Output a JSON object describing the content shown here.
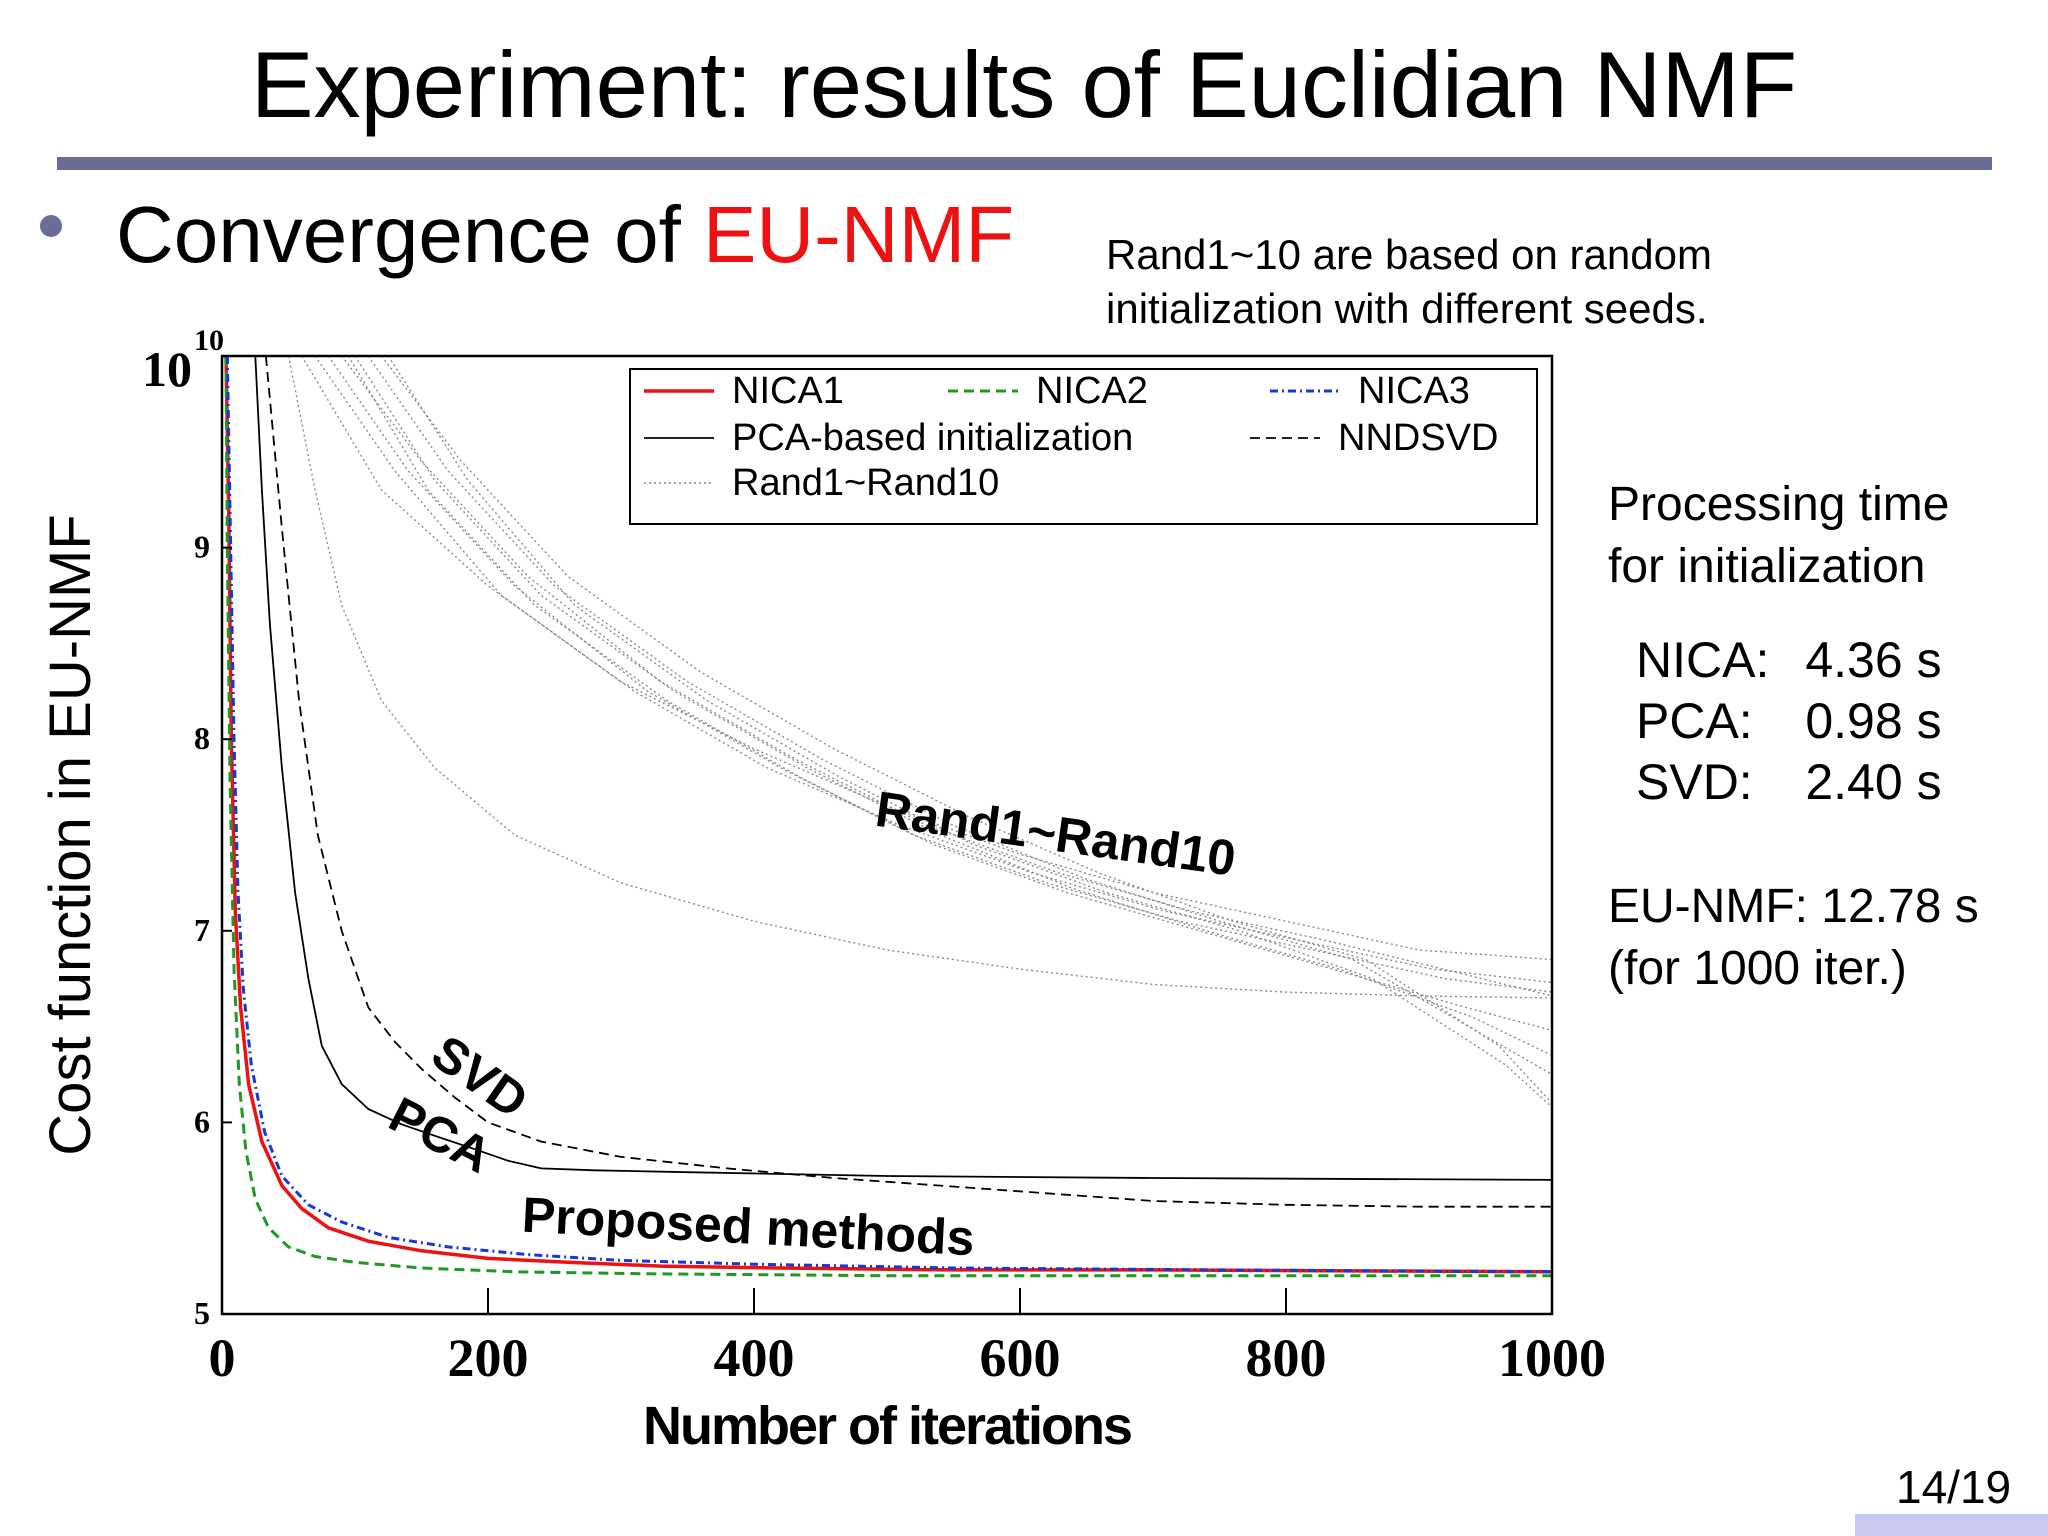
{
  "slide": {
    "title": "Experiment: results of Euclidian NMF",
    "bullet_prefix": "Convergence of ",
    "bullet_highlight": "EU-NMF",
    "note_line1": "Rand1~10 are based on random",
    "note_line2": "initialization with different seeds.",
    "processing_title_line1": "Processing time",
    "processing_title_line2": "for initialization",
    "times": [
      {
        "label": "NICA:",
        "value": "4.36 s"
      },
      {
        "label": "PCA:",
        "value": "0.98 s"
      },
      {
        "label": "SVD:",
        "value": "2.40 s"
      }
    ],
    "eunmf_line1": "EU-NMF: 12.78 s",
    "eunmf_line2": "(for 1000 iter.)",
    "page_number": "14/19",
    "accent_color": "#6b6d98",
    "highlight_color": "#ee1111"
  },
  "chart_data": {
    "type": "line",
    "xlabel": "Number of iterations",
    "ylabel": "Cost function in EU-NMF",
    "xlim": [
      0,
      1000
    ],
    "ylim": [
      5,
      10
    ],
    "x_ticks": [
      0,
      200,
      400,
      600,
      800,
      1000
    ],
    "x_tick_labels": [
      "0",
      "200",
      "400",
      "600",
      "800",
      "1000"
    ],
    "y_ticks": [
      5,
      6,
      7,
      8,
      9
    ],
    "y_tick_labels": [
      "5",
      "6",
      "7",
      "8",
      "9"
    ],
    "y_top_label_base": "10",
    "y_top_label_exp": "10",
    "legend_position": "top-right",
    "annotations": [
      {
        "text": "Rand1~Rand10",
        "x": 490,
        "y": 7.55,
        "rotate": 8
      },
      {
        "text": "SVD",
        "x": 155,
        "y": 6.32,
        "rotate": 35
      },
      {
        "text": "PCA",
        "x": 123,
        "y": 5.98,
        "rotate": 27
      },
      {
        "text": "Proposed methods",
        "x": 225,
        "y": 5.43,
        "rotate": 3
      }
    ],
    "series": [
      {
        "name": "NICA1",
        "color": "#ee1111",
        "dash": "",
        "width": 3.5,
        "points": [
          [
            3,
            10
          ],
          [
            5,
            9.2
          ],
          [
            7,
            8.0
          ],
          [
            10,
            7.1
          ],
          [
            14,
            6.6
          ],
          [
            20,
            6.2
          ],
          [
            30,
            5.9
          ],
          [
            45,
            5.67
          ],
          [
            60,
            5.55
          ],
          [
            80,
            5.45
          ],
          [
            110,
            5.38
          ],
          [
            150,
            5.33
          ],
          [
            200,
            5.29
          ],
          [
            260,
            5.27
          ],
          [
            330,
            5.25
          ],
          [
            420,
            5.24
          ],
          [
            550,
            5.23
          ],
          [
            700,
            5.23
          ],
          [
            1000,
            5.22
          ]
        ]
      },
      {
        "name": "NICA2",
        "color": "#1e9a1e",
        "dash": "10 6",
        "width": 3,
        "points": [
          [
            3,
            10
          ],
          [
            4,
            9.0
          ],
          [
            6,
            7.8
          ],
          [
            9,
            6.8
          ],
          [
            13,
            6.2
          ],
          [
            18,
            5.85
          ],
          [
            25,
            5.6
          ],
          [
            35,
            5.45
          ],
          [
            50,
            5.35
          ],
          [
            70,
            5.3
          ],
          [
            100,
            5.27
          ],
          [
            150,
            5.24
          ],
          [
            220,
            5.22
          ],
          [
            320,
            5.21
          ],
          [
            500,
            5.2
          ],
          [
            1000,
            5.2
          ]
        ]
      },
      {
        "name": "NICA3",
        "color": "#1538d8",
        "dash": "8 4 2 4",
        "width": 3,
        "points": [
          [
            4,
            10
          ],
          [
            6,
            9.2
          ],
          [
            9,
            8.0
          ],
          [
            12,
            7.2
          ],
          [
            16,
            6.7
          ],
          [
            22,
            6.3
          ],
          [
            32,
            5.95
          ],
          [
            45,
            5.72
          ],
          [
            65,
            5.57
          ],
          [
            90,
            5.48
          ],
          [
            125,
            5.4
          ],
          [
            170,
            5.35
          ],
          [
            230,
            5.31
          ],
          [
            300,
            5.28
          ],
          [
            400,
            5.26
          ],
          [
            550,
            5.24
          ],
          [
            750,
            5.23
          ],
          [
            1000,
            5.22
          ]
        ]
      },
      {
        "name": "PCA-based initialization",
        "color": "#000000",
        "dash": "",
        "width": 1.8,
        "points": [
          [
            25,
            10
          ],
          [
            30,
            9.3
          ],
          [
            36,
            8.6
          ],
          [
            45,
            7.85
          ],
          [
            55,
            7.2
          ],
          [
            65,
            6.75
          ],
          [
            75,
            6.4
          ],
          [
            90,
            6.2
          ],
          [
            110,
            6.07
          ],
          [
            135,
            5.99
          ],
          [
            160,
            5.93
          ],
          [
            190,
            5.86
          ],
          [
            215,
            5.8
          ],
          [
            240,
            5.76
          ],
          [
            280,
            5.75
          ],
          [
            350,
            5.74
          ],
          [
            500,
            5.72
          ],
          [
            700,
            5.71
          ],
          [
            1000,
            5.7
          ]
        ]
      },
      {
        "name": "NNDSVD",
        "color": "#000000",
        "dash": "10 6",
        "width": 1.8,
        "points": [
          [
            33,
            10
          ],
          [
            45,
            9.1
          ],
          [
            58,
            8.2
          ],
          [
            72,
            7.5
          ],
          [
            90,
            7.0
          ],
          [
            110,
            6.6
          ],
          [
            130,
            6.42
          ],
          [
            150,
            6.28
          ],
          [
            175,
            6.13
          ],
          [
            200,
            6.0
          ],
          [
            240,
            5.9
          ],
          [
            300,
            5.82
          ],
          [
            380,
            5.76
          ],
          [
            460,
            5.71
          ],
          [
            540,
            5.67
          ],
          [
            620,
            5.63
          ],
          [
            700,
            5.59
          ],
          [
            800,
            5.57
          ],
          [
            900,
            5.56
          ],
          [
            1000,
            5.56
          ]
        ]
      },
      {
        "name": "Rand1~Rand10",
        "color": "#8a8a8a",
        "dash": "2 3",
        "width": 1.4,
        "legend_only": true,
        "points": []
      },
      {
        "name": "Rand1",
        "color": "#8a8a8a",
        "dash": "2 3",
        "width": 1.4,
        "in_legend": false,
        "points": [
          [
            60,
            10
          ],
          [
            120,
            9.3
          ],
          [
            200,
            8.8
          ],
          [
            300,
            8.3
          ],
          [
            400,
            7.95
          ],
          [
            500,
            7.65
          ],
          [
            600,
            7.4
          ],
          [
            700,
            7.2
          ],
          [
            800,
            7.05
          ],
          [
            900,
            6.9
          ],
          [
            1000,
            6.85
          ]
        ]
      },
      {
        "name": "Rand2",
        "color": "#8a8a8a",
        "dash": "2 3",
        "width": 1.4,
        "in_legend": false,
        "points": [
          [
            70,
            10
          ],
          [
            130,
            9.4
          ],
          [
            210,
            8.75
          ],
          [
            310,
            8.25
          ],
          [
            410,
            7.85
          ],
          [
            510,
            7.55
          ],
          [
            610,
            7.3
          ],
          [
            710,
            7.1
          ],
          [
            810,
            6.95
          ],
          [
            910,
            6.8
          ],
          [
            1000,
            6.73
          ]
        ]
      },
      {
        "name": "Rand3",
        "color": "#8a8a8a",
        "dash": "2 3",
        "width": 1.4,
        "in_legend": false,
        "points": [
          [
            80,
            10
          ],
          [
            140,
            9.4
          ],
          [
            220,
            8.8
          ],
          [
            320,
            8.25
          ],
          [
            420,
            7.85
          ],
          [
            520,
            7.5
          ],
          [
            620,
            7.25
          ],
          [
            720,
            7.05
          ],
          [
            820,
            6.9
          ],
          [
            920,
            6.75
          ],
          [
            1000,
            6.68
          ]
        ]
      },
      {
        "name": "Rand4",
        "color": "#8a8a8a",
        "dash": "2 3",
        "width": 1.4,
        "in_legend": false,
        "points": [
          [
            90,
            10
          ],
          [
            150,
            9.45
          ],
          [
            230,
            8.85
          ],
          [
            330,
            8.3
          ],
          [
            430,
            7.9
          ],
          [
            530,
            7.55
          ],
          [
            630,
            7.3
          ],
          [
            730,
            7.1
          ],
          [
            830,
            6.95
          ],
          [
            930,
            6.78
          ],
          [
            1000,
            6.66
          ]
        ]
      },
      {
        "name": "Rand5",
        "color": "#8a8a8a",
        "dash": "2 3",
        "width": 1.4,
        "in_legend": false,
        "points": [
          [
            95,
            10
          ],
          [
            155,
            9.3
          ],
          [
            235,
            8.7
          ],
          [
            335,
            8.2
          ],
          [
            435,
            7.8
          ],
          [
            535,
            7.45
          ],
          [
            635,
            7.2
          ],
          [
            735,
            7.0
          ],
          [
            835,
            6.8
          ],
          [
            935,
            6.6
          ],
          [
            1000,
            6.48
          ]
        ]
      },
      {
        "name": "Rand6",
        "color": "#8a8a8a",
        "dash": "2 3",
        "width": 1.4,
        "in_legend": false,
        "points": [
          [
            100,
            10
          ],
          [
            160,
            9.35
          ],
          [
            240,
            8.75
          ],
          [
            340,
            8.25
          ],
          [
            440,
            7.85
          ],
          [
            540,
            7.5
          ],
          [
            640,
            7.22
          ],
          [
            740,
            7.0
          ],
          [
            840,
            6.8
          ],
          [
            940,
            6.55
          ],
          [
            1000,
            6.35
          ]
        ]
      },
      {
        "name": "Rand7",
        "color": "#8a8a8a",
        "dash": "2 3",
        "width": 1.4,
        "in_legend": false,
        "points": [
          [
            110,
            10
          ],
          [
            170,
            9.4
          ],
          [
            250,
            8.8
          ],
          [
            350,
            8.3
          ],
          [
            450,
            7.9
          ],
          [
            550,
            7.55
          ],
          [
            650,
            7.27
          ],
          [
            750,
            7.05
          ],
          [
            850,
            6.85
          ],
          [
            950,
            6.45
          ],
          [
            1000,
            6.25
          ]
        ]
      },
      {
        "name": "Rand8",
        "color": "#8a8a8a",
        "dash": "2 3",
        "width": 1.4,
        "in_legend": false,
        "points": [
          [
            120,
            10
          ],
          [
            180,
            9.45
          ],
          [
            260,
            8.85
          ],
          [
            360,
            8.35
          ],
          [
            460,
            7.95
          ],
          [
            560,
            7.6
          ],
          [
            660,
            7.3
          ],
          [
            760,
            7.05
          ],
          [
            860,
            6.85
          ],
          [
            960,
            6.4
          ],
          [
            1000,
            6.1
          ]
        ]
      },
      {
        "name": "Rand9",
        "color": "#8a8a8a",
        "dash": "2 3",
        "width": 1.4,
        "in_legend": false,
        "points": [
          [
            125,
            10
          ],
          [
            185,
            9.35
          ],
          [
            265,
            8.7
          ],
          [
            365,
            8.2
          ],
          [
            465,
            7.8
          ],
          [
            565,
            7.45
          ],
          [
            665,
            7.2
          ],
          [
            765,
            7.0
          ],
          [
            865,
            6.75
          ],
          [
            965,
            6.3
          ],
          [
            1000,
            6.08
          ]
        ]
      },
      {
        "name": "Rand10",
        "color": "#8a8a8a",
        "dash": "2 3",
        "width": 1.4,
        "in_legend": false,
        "points": [
          [
            50,
            10
          ],
          [
            70,
            9.3
          ],
          [
            90,
            8.7
          ],
          [
            120,
            8.2
          ],
          [
            160,
            7.85
          ],
          [
            220,
            7.5
          ],
          [
            300,
            7.25
          ],
          [
            400,
            7.05
          ],
          [
            500,
            6.9
          ],
          [
            600,
            6.8
          ],
          [
            700,
            6.72
          ],
          [
            800,
            6.68
          ],
          [
            900,
            6.66
          ],
          [
            1000,
            6.65
          ]
        ]
      }
    ]
  }
}
